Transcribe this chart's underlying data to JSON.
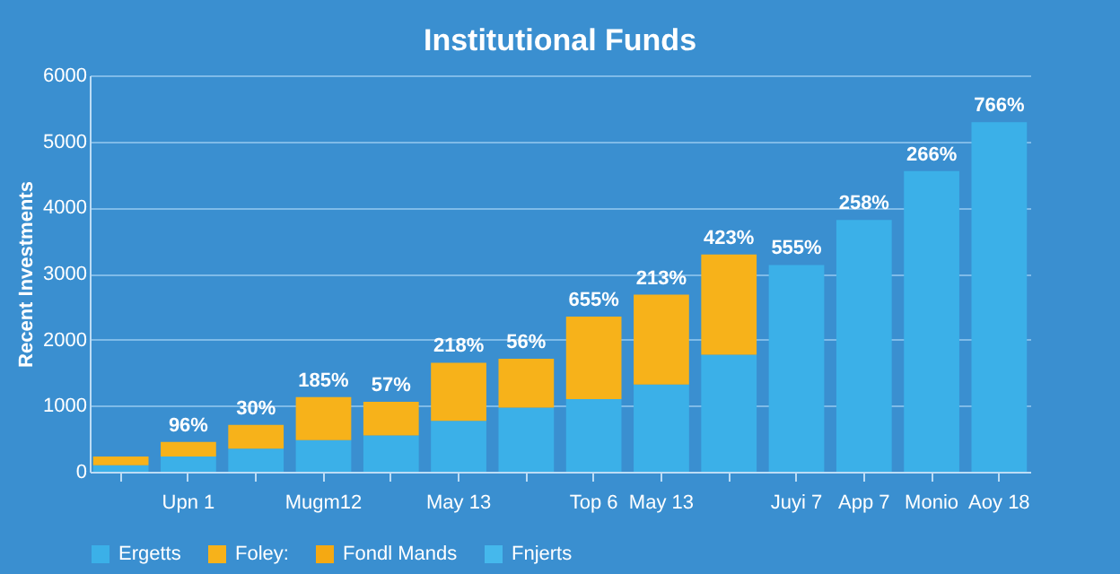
{
  "chart_data": {
    "type": "bar",
    "title": "Institutional Funds",
    "ylabel": "Recent Investments",
    "stacked": true,
    "categories": [
      null,
      "Upn 1",
      null,
      "Mugm12",
      null,
      "May 13",
      null,
      "Top 6",
      "May 13",
      null,
      "Juyi 7",
      "App 7",
      "Monio",
      "Aoy 18"
    ],
    "series": [
      {
        "name": "Ergetts",
        "color": "#3bb0e8",
        "values": [
          100,
          230,
          350,
          480,
          550,
          770,
          970,
          1100,
          1320,
          1770,
          3130,
          3810,
          4550,
          5290
        ]
      },
      {
        "name": "Foley:",
        "color": "#f7b21a",
        "values": [
          130,
          220,
          360,
          650,
          510,
          880,
          740,
          1250,
          1360,
          1520,
          null,
          null,
          null,
          null
        ]
      },
      {
        "name": "Fondl Mands",
        "color": "#f5a912",
        "values": [
          null,
          null,
          null,
          null,
          null,
          null,
          null,
          null,
          null,
          null,
          null,
          null,
          null,
          null
        ]
      },
      {
        "name": "Fnjerts",
        "color": "#45b8ec",
        "values": [
          null,
          null,
          null,
          null,
          null,
          null,
          null,
          null,
          null,
          null,
          null,
          null,
          null,
          null
        ]
      }
    ],
    "value_labels": [
      null,
      "96%",
      "30%",
      "185%",
      "57%",
      "218%",
      "56%",
      "655%",
      "213%",
      "423%",
      "555%",
      "258%",
      "266%",
      "766%"
    ],
    "ylim": [
      0,
      6000
    ],
    "yticks": [
      0,
      1000,
      2000,
      3000,
      4000,
      5000,
      6000
    ],
    "grid": "y",
    "legend": "bottom"
  }
}
